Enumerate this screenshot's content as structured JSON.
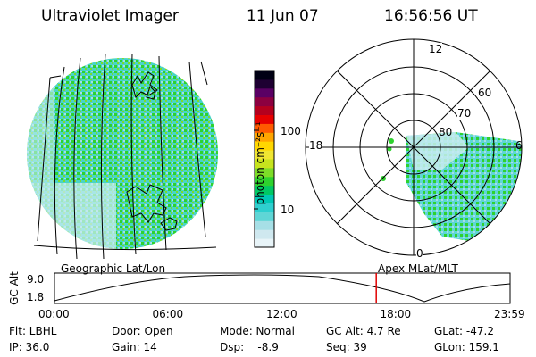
{
  "header": {
    "instrument": "Ultraviolet Imager",
    "date": "11 Jun 07",
    "time": "16:56:56 UT"
  },
  "colorbar": {
    "unit_label": "photon cm⁻²s⁻¹",
    "tick_100": "100",
    "tick_10": "10",
    "colors": [
      "#e8f4f8",
      "#cfe8ef",
      "#a6dfe6",
      "#5fd6d6",
      "#2ecfcf",
      "#00c8b4",
      "#00c864",
      "#2ed22e",
      "#7ddc28",
      "#c6e41e",
      "#f0e632",
      "#ffd700",
      "#ffa500",
      "#ff5a00",
      "#e60000",
      "#b4001e",
      "#8c0040",
      "#5a0064",
      "#1e0032",
      "#000014"
    ]
  },
  "left_map": {
    "label": "Geographic Lat/Lon",
    "fill_color": "#c8ecf0",
    "emission_color": "#2ed22e"
  },
  "polar_plot": {
    "label": "Apex  MLat/MLT",
    "mlt_12": "12",
    "mlt_18": "18",
    "mlt_6": "6",
    "mlt_0": "0",
    "mlat_60": "60",
    "mlat_70": "70",
    "mlat_80": "80"
  },
  "orbit_plot": {
    "y_axis_label": "GC Alt",
    "y_tick_high": "9.0",
    "y_tick_low": "1.8",
    "x_ticks": [
      "00:00",
      "06:00",
      "12:00",
      "18:00",
      "23:59"
    ],
    "marker_time_hours": 16.95,
    "marker_color": "#e00000"
  },
  "status": {
    "filter": "Flt: LBHL",
    "ip": "IP: 36.0",
    "door": "Door: Open",
    "gain": "Gain: 14",
    "mode": "Mode: Normal",
    "dsp": "Dsp:    -8.9",
    "gc_alt": "GC Alt: 4.7 Re",
    "seq": "Seq: 39",
    "glat": "GLat: -47.2",
    "glon": "GLon: 159.1"
  }
}
